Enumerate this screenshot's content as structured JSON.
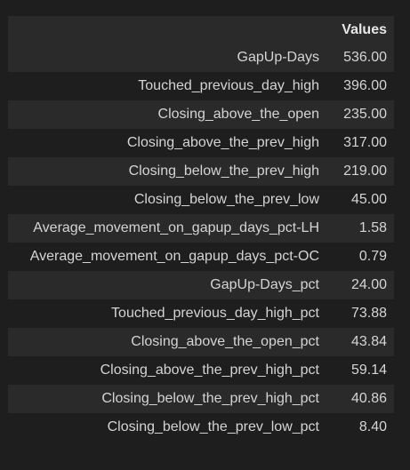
{
  "table": {
    "header": {
      "index": "",
      "values": "Values"
    },
    "rows": [
      {
        "label": "GapUp-Days",
        "value": "536.00"
      },
      {
        "label": "Touched_previous_day_high",
        "value": "396.00"
      },
      {
        "label": "Closing_above_the_open",
        "value": "235.00"
      },
      {
        "label": "Closing_above_the_prev_high",
        "value": "317.00"
      },
      {
        "label": "Closing_below_the_prev_high",
        "value": "219.00"
      },
      {
        "label": "Closing_below_the_prev_low",
        "value": "45.00"
      },
      {
        "label": "Average_movement_on_gapup_days_pct-LH",
        "value": "1.58"
      },
      {
        "label": "Average_movement_on_gapup_days_pct-OC",
        "value": "0.79"
      },
      {
        "label": "GapUp-Days_pct",
        "value": "24.00"
      },
      {
        "label": "Touched_previous_day_high_pct",
        "value": "73.88"
      },
      {
        "label": "Closing_above_the_open_pct",
        "value": "43.84"
      },
      {
        "label": "Closing_above_the_prev_high_pct",
        "value": "59.14"
      },
      {
        "label": "Closing_below_the_prev_high_pct",
        "value": "40.86"
      },
      {
        "label": "Closing_below_the_prev_low_pct",
        "value": "8.40"
      }
    ]
  }
}
